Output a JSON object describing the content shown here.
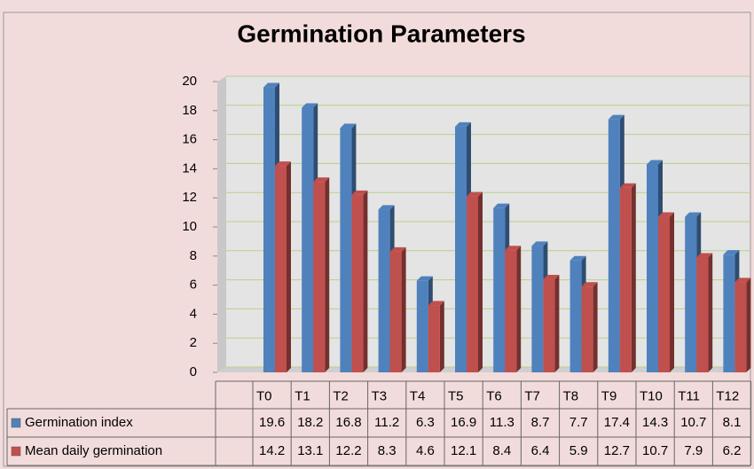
{
  "chart_data": {
    "type": "bar",
    "title": "Germination Parameters",
    "categories": [
      "T0",
      "T1",
      "T2",
      "T3",
      "T4",
      "T5",
      "T6",
      "T7",
      "T8",
      "T9",
      "T10",
      "T11",
      "T12"
    ],
    "series": [
      {
        "name": "Germination index",
        "color": "#4f81bd",
        "values": [
          19.6,
          18.2,
          16.8,
          11.2,
          6.3,
          16.9,
          11.3,
          8.7,
          7.7,
          17.4,
          14.3,
          10.7,
          8.1
        ]
      },
      {
        "name": "Mean daily germination",
        "color": "#c0504d",
        "values": [
          14.2,
          13.1,
          12.2,
          8.3,
          4.6,
          12.1,
          8.4,
          6.4,
          5.9,
          12.7,
          10.7,
          7.9,
          6.2
        ]
      }
    ],
    "ylim": [
      0,
      20
    ],
    "yticks": [
      0,
      2,
      4,
      6,
      8,
      10,
      12,
      14,
      16,
      18,
      20
    ],
    "grid": true
  }
}
